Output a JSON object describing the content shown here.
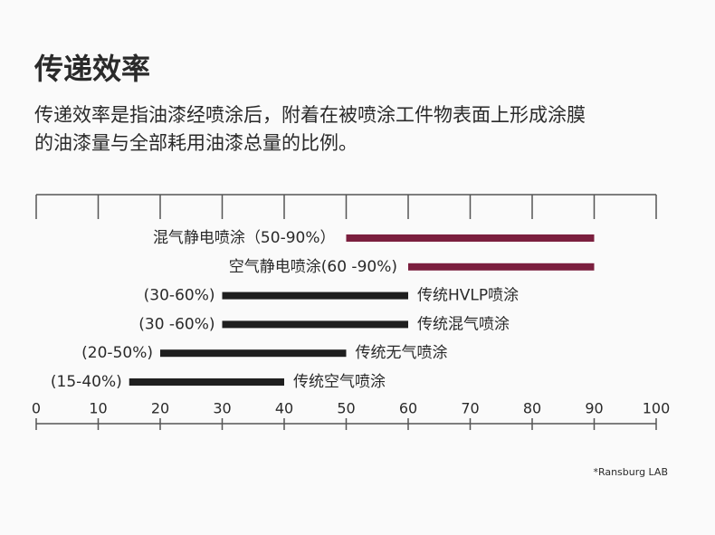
{
  "chart_data": {
    "type": "range_bar",
    "title": "传递效率",
    "description": [
      "传递效率是指油漆经喷涂后，附着在被喷涂工件物表面上形成涂膜",
      "的油漆量与全部耗用油漆总量的比例。"
    ],
    "categories": [
      "混气静电喷涂",
      "空气静电喷涂",
      "传统HVLP喷涂",
      "传统混气喷涂",
      "传统无气喷涂",
      "传统空气喷涂"
    ],
    "low": [
      50,
      60,
      30,
      30,
      20,
      15
    ],
    "high": [
      90,
      90,
      60,
      60,
      50,
      40
    ],
    "value_labels": [
      "（50-90%）",
      "(60 -90%)",
      "(30-60%)",
      "(30 -60%)",
      "(20-50%)",
      "(15-40%)"
    ],
    "colors": [
      "#7b1f3e",
      "#7b1f3e",
      "#1f1f1f",
      "#1f1f1f",
      "#1f1f1f",
      "#1f1f1f"
    ],
    "xlim": [
      0,
      100
    ],
    "xticks": [
      0,
      10,
      20,
      30,
      40,
      50,
      60,
      70,
      80,
      90,
      100
    ],
    "footnote": "*Ransburg  LAB"
  }
}
